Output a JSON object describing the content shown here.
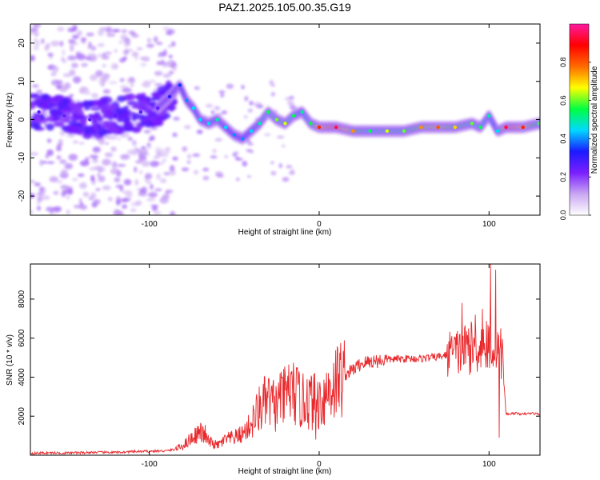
{
  "figure": {
    "title": "PAZ1.2025.105.00.35.G19"
  },
  "chart_data": [
    {
      "type": "heatmap",
      "title": "PAZ1.2025.105.00.35.G19",
      "xlabel": "Height of straight line (km)",
      "ylabel": "Frequency (Hz)",
      "xlim": [
        -170,
        130
      ],
      "ylim": [
        -25,
        25
      ],
      "x_ticks": [
        -100,
        0,
        100
      ],
      "y_ticks": [
        -20,
        -10,
        0,
        10,
        20
      ],
      "colorbar": {
        "label": "Normalized spectral amplitude",
        "range": [
          0,
          1
        ],
        "ticks": [
          0.0,
          0.2,
          0.4,
          0.6,
          0.8
        ],
        "colors": [
          "#ffffff",
          "#c9a6f2",
          "#7a1fff",
          "#1a1aff",
          "#00d9ff",
          "#00ff40",
          "#ffff00",
          "#ff6a00",
          "#ff0000",
          "#ff1aa0"
        ]
      },
      "ridge": {
        "x": [
          -165,
          -150,
          -135,
          -120,
          -105,
          -95,
          -88,
          -82,
          -78,
          -74,
          -70,
          -65,
          -60,
          -55,
          -50,
          -45,
          -40,
          -35,
          -30,
          -25,
          -20,
          -15,
          -10,
          -5,
          0,
          10,
          20,
          30,
          40,
          50,
          60,
          70,
          80,
          90,
          95,
          100,
          105,
          110,
          120,
          130
        ],
        "y": [
          2,
          1,
          0,
          1,
          2,
          3,
          6,
          9,
          5,
          3,
          0,
          -1,
          0,
          -2,
          -4,
          -5,
          -3,
          -1,
          2,
          0,
          -1,
          1,
          2,
          -1,
          -2,
          -2,
          -3,
          -3,
          -3,
          -3,
          -2,
          -2,
          -2,
          -1,
          -2,
          1,
          -3,
          -2,
          -2,
          -1
        ],
        "amplitude": [
          0.25,
          0.25,
          0.25,
          0.25,
          0.25,
          0.25,
          0.3,
          0.35,
          0.4,
          0.45,
          0.45,
          0.45,
          0.5,
          0.45,
          0.4,
          0.4,
          0.45,
          0.5,
          0.55,
          0.6,
          0.65,
          0.55,
          0.5,
          0.55,
          0.85,
          0.95,
          0.75,
          0.55,
          0.65,
          0.6,
          0.75,
          0.8,
          0.7,
          0.6,
          0.55,
          0.5,
          0.45,
          0.95,
          0.85,
          0.6
        ]
      }
    },
    {
      "type": "line",
      "xlabel": "Height of straight line (km)",
      "ylabel": "SNR (10 * v/v)",
      "xlim": [
        -170,
        130
      ],
      "ylim": [
        0,
        9800
      ],
      "x_ticks": [
        -100,
        0,
        100
      ],
      "y_ticks": [
        2000,
        4000,
        6000,
        8000
      ],
      "series": [
        {
          "color": "#e8282c",
          "x": [
            -170,
            -160,
            -150,
            -140,
            -130,
            -120,
            -110,
            -100,
            -90,
            -85,
            -80,
            -75,
            -70,
            -65,
            -60,
            -55,
            -50,
            -45,
            -40,
            -35,
            -30,
            -25,
            -20,
            -15,
            -10,
            -5,
            0,
            5,
            10,
            15,
            20,
            25,
            30,
            40,
            50,
            60,
            70,
            80,
            85,
            90,
            95,
            100,
            103,
            105,
            108,
            110,
            115,
            120,
            125,
            130
          ],
          "y": [
            100,
            120,
            110,
            130,
            150,
            140,
            180,
            200,
            220,
            300,
            500,
            900,
            1200,
            700,
            500,
            800,
            900,
            1100,
            1600,
            2400,
            2800,
            2500,
            3000,
            3200,
            2700,
            2800,
            2700,
            3300,
            3800,
            4100,
            4400,
            4700,
            4800,
            4900,
            4950,
            4950,
            5050,
            5200,
            5400,
            5500,
            5600,
            5700,
            5500,
            6000,
            4900,
            2100,
            2150,
            2100,
            2150,
            2100
          ],
          "spikes": [
            {
              "x": -67,
              "y": 1550
            },
            {
              "x": -37,
              "y": 2900
            },
            {
              "x": -28,
              "y": 3500
            },
            {
              "x": -23,
              "y": 4200
            },
            {
              "x": -18,
              "y": 4650
            },
            {
              "x": -7,
              "y": 3900
            },
            {
              "x": -2,
              "y": 800
            },
            {
              "x": 6,
              "y": 3900
            },
            {
              "x": 78,
              "y": 6100
            },
            {
              "x": 84,
              "y": 7800
            },
            {
              "x": 88,
              "y": 6500
            },
            {
              "x": 92,
              "y": 7200
            },
            {
              "x": 96,
              "y": 7500
            },
            {
              "x": 99,
              "y": 4500
            },
            {
              "x": 101,
              "y": 9800
            },
            {
              "x": 104,
              "y": 9500
            },
            {
              "x": 106,
              "y": 900
            }
          ]
        }
      ]
    }
  ]
}
